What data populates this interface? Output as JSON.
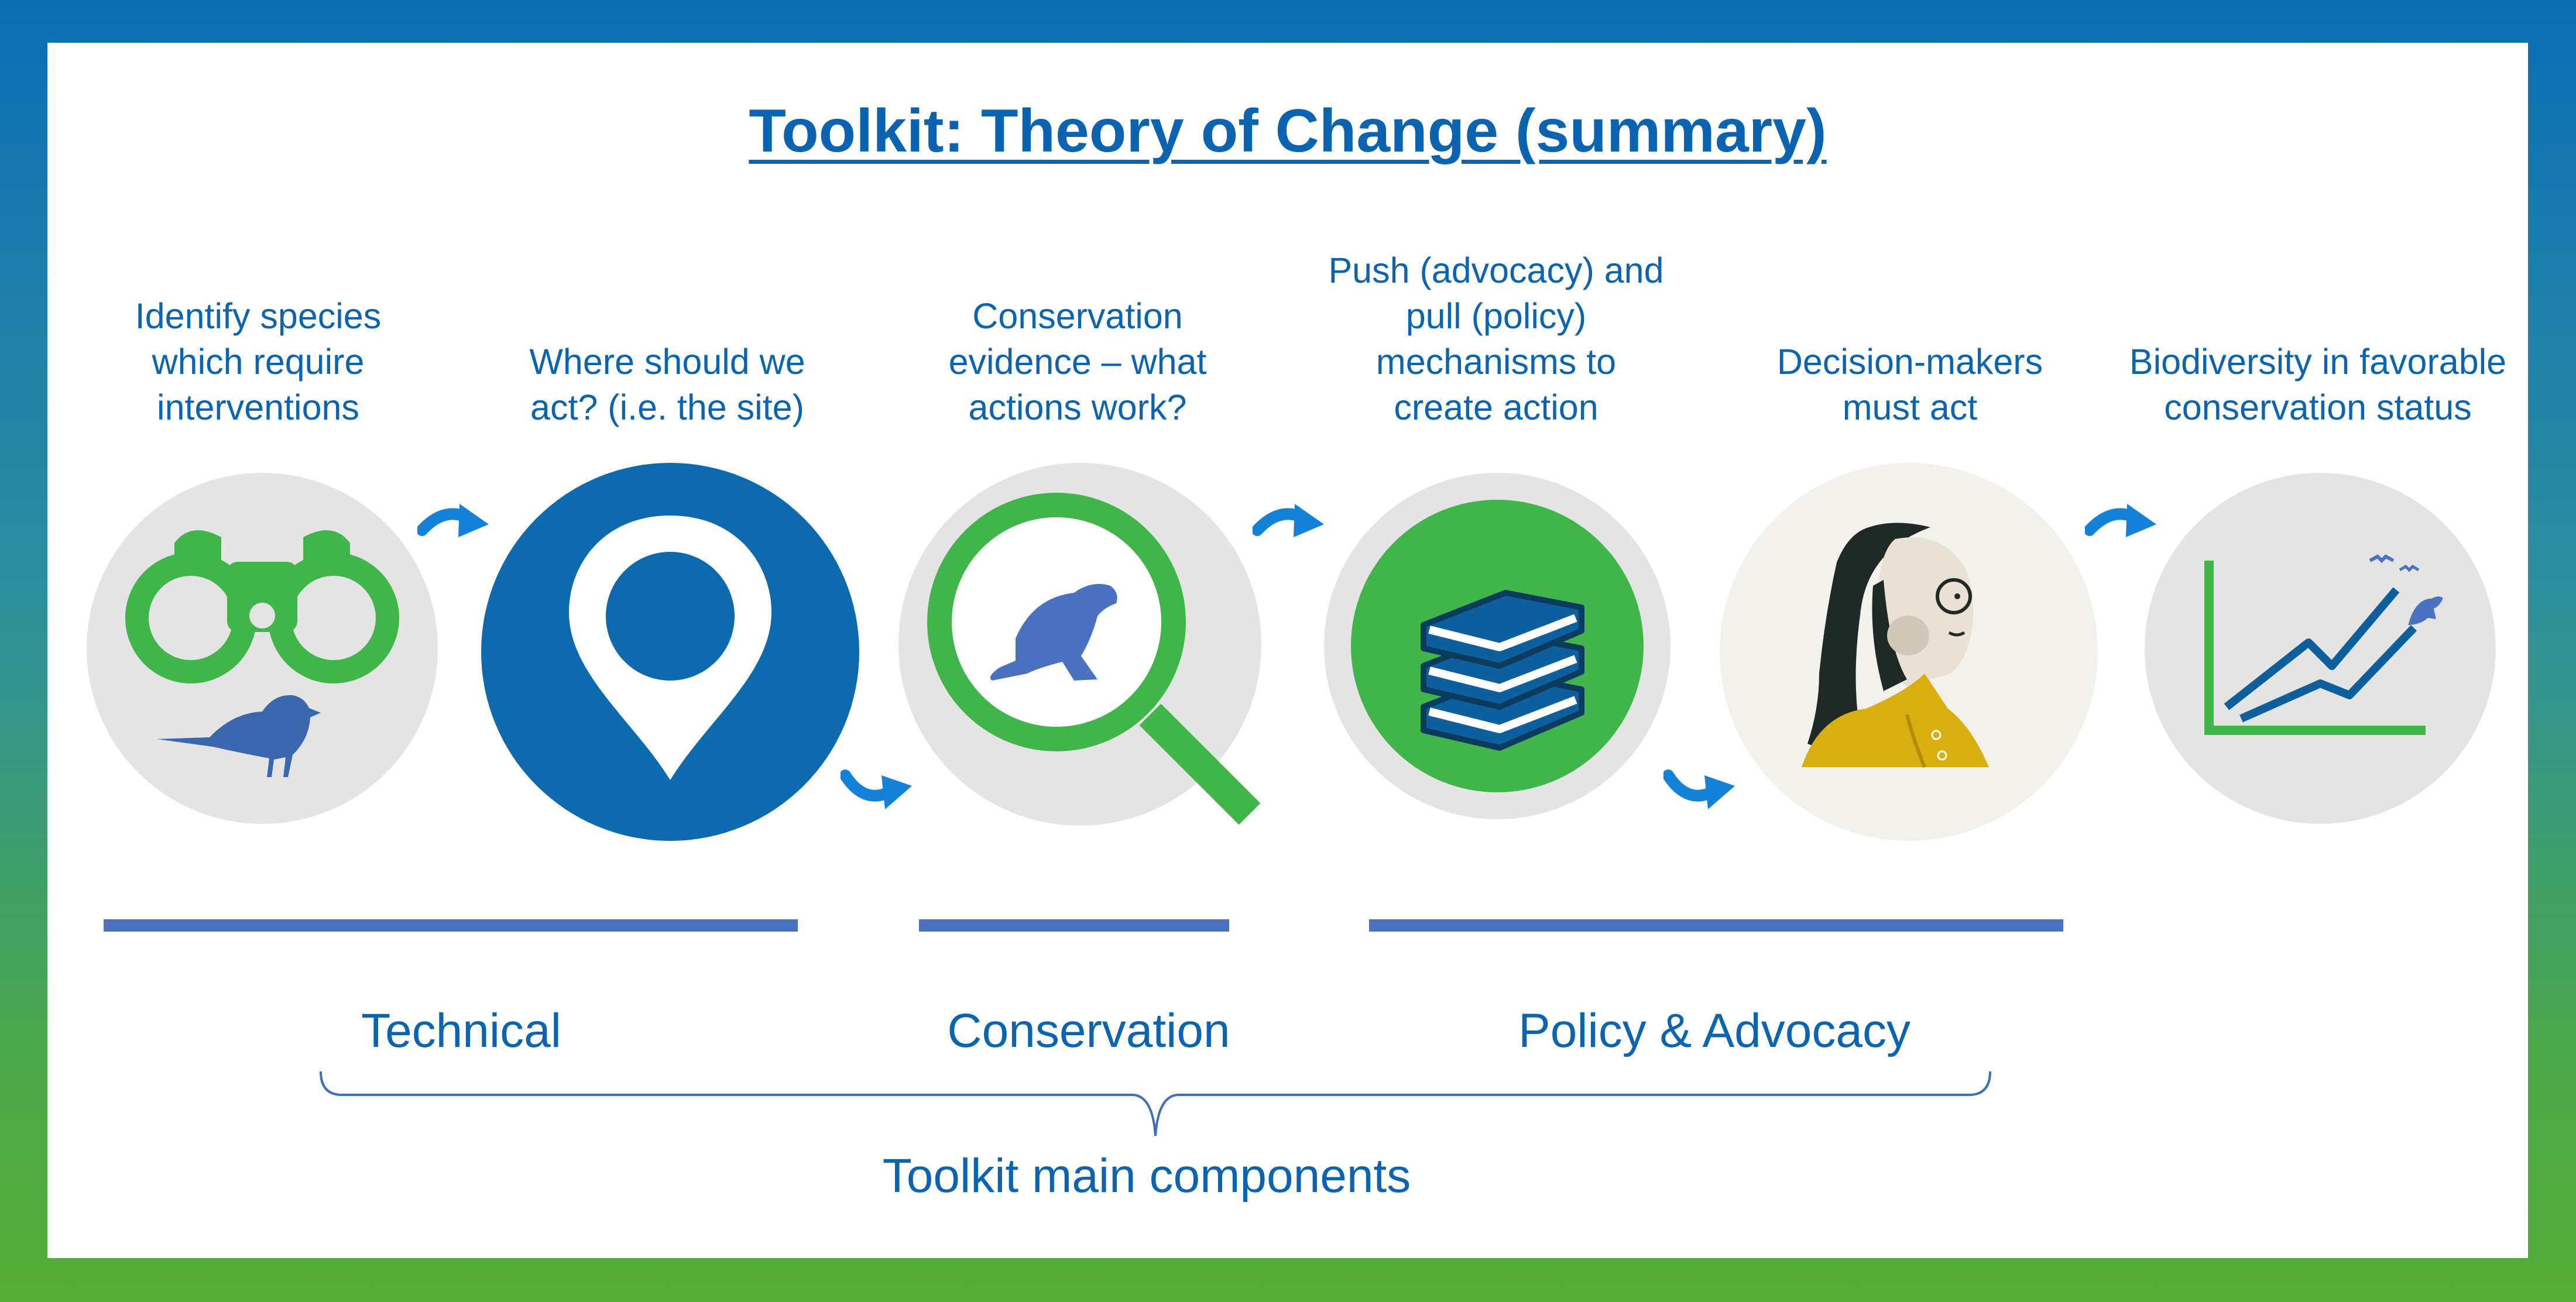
{
  "title": "Toolkit: Theory of Change (summary)",
  "steps": [
    {
      "lines": [
        "Identify species",
        "which require",
        "interventions"
      ],
      "icon": "binoculars-bird-icon"
    },
    {
      "lines": [
        "Where should we",
        "act? (i.e. the site)"
      ],
      "icon": "map-pin-icon"
    },
    {
      "lines": [
        "Conservation",
        "evidence – what",
        "actions work?"
      ],
      "icon": "magnifier-seal-icon"
    },
    {
      "lines": [
        "Push (advocacy) and",
        "pull (policy)",
        "mechanisms to",
        "create action"
      ],
      "icon": "books-icon"
    },
    {
      "lines": [
        "Decision-makers",
        "must act"
      ],
      "icon": "person-icon"
    },
    {
      "lines": [
        "Biodiversity in favorable",
        "conservation status"
      ],
      "icon": "trend-chart-icon"
    }
  ],
  "groups": {
    "technical": "Technical",
    "conservation": "Conservation",
    "policy": "Policy & Advocacy"
  },
  "components_label": "Toolkit main components",
  "colors": {
    "primary_blue": "#0b64b2",
    "green": "#3fb54a",
    "bar_blue": "#4a72c0",
    "light_gray": "#e4e4e4"
  }
}
